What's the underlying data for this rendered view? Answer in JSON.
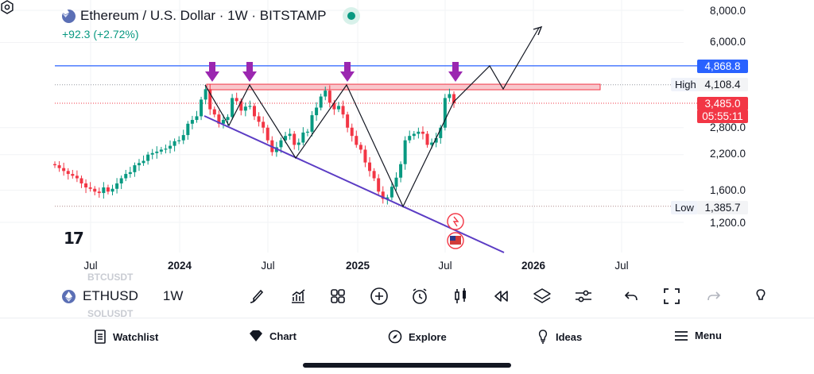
{
  "header": {
    "title": "Ethereum / U.S. Dollar · 1W · BITSTAMP",
    "change": "+92.3 (+2.72%)"
  },
  "colors": {
    "up": "#089981",
    "down": "#f23645",
    "resistance_line": "#2962ff",
    "support_line": "#5b3cc4",
    "marker_arrows": "#9b27b0",
    "zone_fill": "#f8c7cc"
  },
  "price_axis": {
    "labels": [
      "8,000.0",
      "6,000.0",
      "2,800.0",
      "2,200.0",
      "1,600.0",
      "1,200.0"
    ]
  },
  "price_tags": {
    "resistance": "4,868.8",
    "high_label": "High",
    "high_value": "4,108.4",
    "current": "3,485.0",
    "countdown": "05:55:11",
    "low_label": "Low",
    "low_value": "1,385.7"
  },
  "time_axis": {
    "labels": [
      {
        "text": "Jul",
        "bold": false
      },
      {
        "text": "2024",
        "bold": true
      },
      {
        "text": "Jul",
        "bold": false
      },
      {
        "text": "2025",
        "bold": true
      },
      {
        "text": "Jul",
        "bold": false
      },
      {
        "text": "2026",
        "bold": true
      },
      {
        "text": "Jul",
        "bold": false
      }
    ]
  },
  "toolbar": {
    "symbol": "ETHUSD",
    "interval": "1W",
    "ghost_above": "BTCUSDT",
    "ghost_below": "SOLUSDT"
  },
  "bottom_nav": {
    "items": [
      "Watchlist",
      "Chart",
      "Explore",
      "Ideas",
      "Menu"
    ]
  },
  "icons": [
    "ethereum-icon",
    "live-status-icon",
    "tradingview-logo",
    "settings-icon",
    "brush-icon",
    "indicators-icon",
    "layouts-icon",
    "add-icon",
    "alarm-icon",
    "candles-icon",
    "replay-icon",
    "layers-icon",
    "settings-sliders-icon",
    "undo-icon",
    "fullscreen-icon",
    "redo-icon",
    "watchlist-icon",
    "chart-icon",
    "explore-icon",
    "ideas-icon",
    "menu-icon",
    "earnings-event-icon",
    "us-flag-event-icon"
  ],
  "chart_data": {
    "type": "candlestick",
    "series": [
      {
        "name": "ETHUSD",
        "interval": "1W",
        "approx_weekly_closes_usd": [
          2000,
          1950,
          1900,
          1850,
          1820,
          1780,
          1700,
          1640,
          1620,
          1580,
          1560,
          1640,
          1580,
          1620,
          1700,
          1780,
          1850,
          1880,
          2000,
          2040,
          2080,
          2200,
          2230,
          2260,
          2300,
          2320,
          2380,
          2480,
          2500,
          2620,
          2900,
          3000,
          3100,
          3600,
          3950,
          3300,
          3150,
          2900,
          3000,
          3080,
          3650,
          3550,
          3260,
          3380,
          3400,
          3100,
          2950,
          2800,
          2500,
          2250,
          2350,
          2500,
          2600,
          2650,
          2400,
          2450,
          2680,
          2700,
          3130,
          3350,
          3700,
          3900,
          3500,
          3300,
          3400,
          3150,
          2800,
          2600,
          2400,
          2300,
          2050,
          1900,
          1780,
          1580,
          1480,
          1500,
          1650,
          1790,
          2020,
          2500,
          2600,
          2650,
          2700,
          2650,
          2400,
          2450,
          2550,
          2800,
          3650,
          3780,
          3485
        ],
        "last": 3485.0,
        "session_high": 4108.4,
        "session_low": 1385.7
      }
    ],
    "horizontal_lines": [
      {
        "label": "resistance",
        "price": 4868.8
      },
      {
        "label": "High",
        "price": 4108.4
      },
      {
        "label": "current",
        "price": 3485.0
      },
      {
        "label": "Low",
        "price": 1385.7
      }
    ],
    "annotations": [
      "descending support trendline from early 2024 to mid 2025",
      "zigzag projection breaking above 4,868.8 toward 8,000",
      "four downward arrows marking tops near 4,100"
    ],
    "y_axis": {
      "scale": "log",
      "range": [
        1100,
        8500
      ]
    },
    "x_axis": {
      "range": [
        "2023-06",
        "2026-08"
      ]
    }
  }
}
